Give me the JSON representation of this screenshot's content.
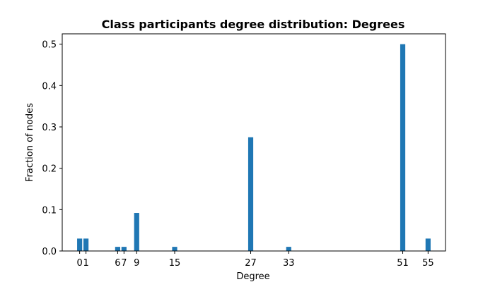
{
  "chart_data": {
    "type": "bar",
    "title": "Class participants degree distribution: Degrees",
    "xlabel": "Degree",
    "ylabel": "Fraction of nodes",
    "x": [
      0,
      1,
      6,
      7,
      9,
      15,
      27,
      33,
      51,
      55
    ],
    "values": [
      0.03,
      0.03,
      0.01,
      0.01,
      0.092,
      0.01,
      0.275,
      0.01,
      0.5,
      0.03
    ],
    "x_ticks": [
      0,
      1,
      6,
      7,
      9,
      15,
      27,
      33,
      51,
      55
    ],
    "y_ticks": [
      0.0,
      0.1,
      0.2,
      0.3,
      0.4,
      0.5
    ],
    "xlim": [
      -2.75,
      57.75
    ],
    "ylim": [
      0,
      0.525
    ],
    "bar_color": "#1f77b4",
    "grid": false,
    "legend": "none"
  }
}
